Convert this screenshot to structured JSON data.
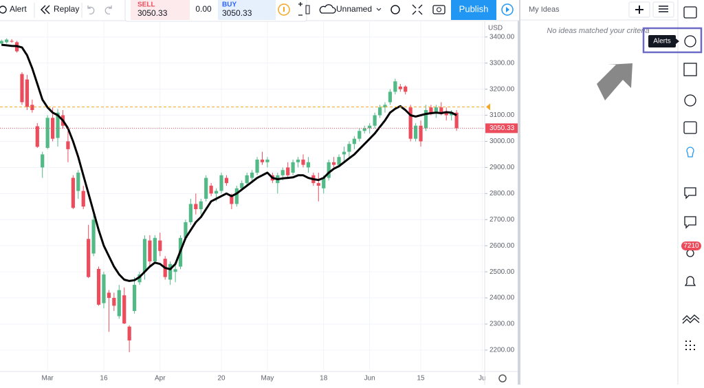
{
  "toolbar": {
    "alert": "Alert",
    "replay": "Replay",
    "sell_label": "SELL",
    "sell_price": "3050.33",
    "spread": "0.00",
    "buy_label": "BUY",
    "buy_price": "3050.33",
    "layout_name": "Unnamed",
    "publish": "Publish"
  },
  "ideas_panel": {
    "title": "My Ideas",
    "empty_message": "No ideas matched your criteria"
  },
  "sidebar": {
    "tooltip": "Alerts",
    "badge": "7210"
  },
  "chart_data": {
    "type": "candlestick",
    "currency": "USD",
    "up_color": "#53b987",
    "down_color": "#eb4d5c",
    "ohlc": [
      [
        3375,
        3390,
        3370,
        3385
      ],
      [
        3380,
        3395,
        3375,
        3390
      ],
      [
        3385,
        3392,
        3378,
        3382
      ],
      [
        3380,
        3385,
        3340,
        3345
      ],
      [
        3258,
        3265,
        3140,
        3150
      ],
      [
        3237,
        3255,
        3120,
        3132
      ],
      [
        3140,
        3160,
        3110,
        3120
      ],
      [
        3058,
        3070,
        2975,
        2979
      ],
      [
        2900,
        2960,
        2860,
        2950
      ],
      [
        2975,
        3100,
        2970,
        3090
      ],
      [
        3090,
        3130,
        3000,
        3010
      ],
      [
        3013,
        3124,
        2980,
        3110
      ],
      [
        3100,
        3120,
        3050,
        3060
      ],
      [
        3000,
        3040,
        2920,
        2970
      ],
      [
        2860,
        2870,
        2740,
        2745
      ],
      [
        2810,
        2890,
        2780,
        2880
      ],
      [
        2810,
        2830,
        2740,
        2750
      ],
      [
        2626,
        2680,
        2476,
        2480
      ],
      [
        2570,
        2720,
        2560,
        2700
      ],
      [
        2511,
        2520,
        2370,
        2374
      ],
      [
        2380,
        2500,
        2360,
        2490
      ],
      [
        2420,
        2430,
        2270,
        2400
      ],
      [
        2400,
        2420,
        2350,
        2370
      ],
      [
        2330,
        2450,
        2320,
        2430
      ],
      [
        2410,
        2440,
        2300,
        2302
      ],
      [
        2290,
        2295,
        2192,
        2237
      ],
      [
        2350,
        2480,
        2340,
        2450
      ],
      [
        2460,
        2500,
        2450,
        2490
      ],
      [
        2500,
        2640,
        2470,
        2626
      ],
      [
        2620,
        2640,
        2520,
        2540
      ],
      [
        2540,
        2640,
        2530,
        2630
      ],
      [
        2620,
        2650,
        2560,
        2580
      ],
      [
        2550,
        2560,
        2470,
        2480
      ],
      [
        2470,
        2540,
        2450,
        2530
      ],
      [
        2500,
        2530,
        2460,
        2510
      ],
      [
        2520,
        2640,
        2510,
        2630
      ],
      [
        2630,
        2700,
        2620,
        2690
      ],
      [
        2690,
        2780,
        2680,
        2760
      ],
      [
        2760,
        2800,
        2720,
        2740
      ],
      [
        2740,
        2780,
        2720,
        2770
      ],
      [
        2780,
        2870,
        2770,
        2860
      ],
      [
        2830,
        2840,
        2790,
        2800
      ],
      [
        2800,
        2820,
        2770,
        2810
      ],
      [
        2810,
        2880,
        2800,
        2870
      ],
      [
        2860,
        2870,
        2830,
        2840
      ],
      [
        2790,
        2800,
        2740,
        2760
      ],
      [
        2760,
        2830,
        2750,
        2820
      ],
      [
        2820,
        2850,
        2810,
        2840
      ],
      [
        2840,
        2880,
        2830,
        2870
      ],
      [
        2860,
        2890,
        2840,
        2880
      ],
      [
        2880,
        2940,
        2870,
        2930
      ],
      [
        2930,
        2960,
        2910,
        2920
      ],
      [
        2920,
        2940,
        2900,
        2930
      ],
      [
        2870,
        2880,
        2840,
        2850
      ],
      [
        2840,
        2880,
        2800,
        2870
      ],
      [
        2870,
        2900,
        2850,
        2890
      ],
      [
        2900,
        2920,
        2860,
        2870
      ],
      [
        2880,
        2930,
        2870,
        2920
      ],
      [
        2920,
        2940,
        2900,
        2930
      ],
      [
        2930,
        2950,
        2900,
        2910
      ],
      [
        2900,
        2940,
        2880,
        2920
      ],
      [
        2870,
        2880,
        2830,
        2840
      ],
      [
        2840,
        2880,
        2770,
        2830
      ],
      [
        2820,
        2870,
        2800,
        2860
      ],
      [
        2860,
        2930,
        2850,
        2920
      ],
      [
        2920,
        2940,
        2900,
        2910
      ],
      [
        2910,
        2950,
        2900,
        2940
      ],
      [
        2950,
        2980,
        2920,
        2960
      ],
      [
        2960,
        3000,
        2940,
        2990
      ],
      [
        2990,
        3020,
        2970,
        3010
      ],
      [
        3010,
        3050,
        3000,
        3040
      ],
      [
        3040,
        3060,
        3030,
        3050
      ],
      [
        3050,
        3070,
        3030,
        3060
      ],
      [
        3060,
        3110,
        3050,
        3100
      ],
      [
        3100,
        3140,
        3090,
        3130
      ],
      [
        3130,
        3150,
        3110,
        3140
      ],
      [
        3150,
        3200,
        3140,
        3190
      ],
      [
        3190,
        3240,
        3180,
        3230
      ],
      [
        3210,
        3220,
        3190,
        3200
      ],
      [
        3210,
        3215,
        3180,
        3190
      ],
      [
        3130,
        3140,
        3000,
        3010
      ],
      [
        3010,
        3070,
        3000,
        3060
      ],
      [
        3060,
        3080,
        2980,
        3000
      ],
      [
        3050,
        3140,
        3040,
        3120
      ],
      [
        3130,
        3140,
        3100,
        3110
      ],
      [
        3110,
        3140,
        3090,
        3130
      ],
      [
        3130,
        3150,
        3100,
        3105
      ],
      [
        3110,
        3130,
        3080,
        3100
      ],
      [
        3100,
        3120,
        3080,
        3110
      ],
      [
        3110,
        3120,
        3040,
        3050.33
      ]
    ],
    "ma": [
      3370,
      3368,
      3366,
      3365,
      3360,
      3330,
      3280,
      3220,
      3160,
      3130,
      3110,
      3100,
      3080,
      3050,
      3000,
      2940,
      2870,
      2800,
      2730,
      2660,
      2600,
      2560,
      2520,
      2490,
      2470,
      2465,
      2468,
      2480,
      2500,
      2520,
      2535,
      2530,
      2515,
      2510,
      2530,
      2580,
      2630,
      2660,
      2690,
      2710,
      2740,
      2770,
      2780,
      2790,
      2800,
      2790,
      2800,
      2815,
      2830,
      2845,
      2860,
      2870,
      2880,
      2860,
      2855,
      2858,
      2860,
      2862,
      2870,
      2870,
      2860,
      2855,
      2852,
      2860,
      2880,
      2895,
      2905,
      2920,
      2935,
      2950,
      2970,
      2990,
      3010,
      3030,
      3055,
      3080,
      3110,
      3125,
      3135,
      3120,
      3100,
      3095,
      3100,
      3105,
      3108,
      3110,
      3108,
      3112,
      3110,
      3100
    ],
    "ma_color": "#000000",
    "reference_line": 3132,
    "reference_color": "#f5a623",
    "last_price": {
      "value": 3050.33,
      "label": "3050.33"
    },
    "last_price_color": "#eb4d5c",
    "xlim": [
      -0.3,
      94.5
    ],
    "xticks": [
      {
        "value": 9,
        "label": "Mar"
      },
      {
        "value": 20,
        "label": "16"
      },
      {
        "value": 31,
        "label": "Apr"
      },
      {
        "value": 43,
        "label": "20"
      },
      {
        "value": 52,
        "label": "May"
      },
      {
        "value": 63,
        "label": "18"
      },
      {
        "value": 72,
        "label": "Jun"
      },
      {
        "value": 82,
        "label": "15"
      },
      {
        "value": 94,
        "label": "Ju"
      }
    ],
    "ylim": [
      2118,
      3460
    ],
    "yticks": [
      {
        "value": 2200,
        "label": "2200.00"
      },
      {
        "value": 2300,
        "label": "2300.00"
      },
      {
        "value": 2400,
        "label": "2400.00"
      },
      {
        "value": 2500,
        "label": "2500.00"
      },
      {
        "value": 2600,
        "label": "2600.00"
      },
      {
        "value": 2700,
        "label": "2700.00"
      },
      {
        "value": 2800,
        "label": "2800.00"
      },
      {
        "value": 2900,
        "label": "2900.00"
      },
      {
        "value": 3000,
        "label": "3000.00"
      },
      {
        "value": 3100,
        "label": "3100.00"
      },
      {
        "value": 3200,
        "label": "3200.00"
      },
      {
        "value": 3300,
        "label": "3300.00"
      },
      {
        "value": 3400,
        "label": "3400.00"
      }
    ],
    "grid": true
  }
}
